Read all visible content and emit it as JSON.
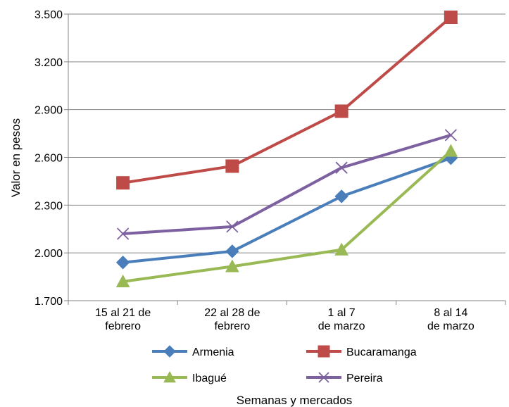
{
  "chart_data": {
    "type": "line",
    "categories": [
      [
        "15 al 21 de",
        "febrero"
      ],
      [
        "22 al 28 de",
        "febrero"
      ],
      [
        "1 al 7",
        "de marzo"
      ],
      [
        "8 al 14",
        "de marzo"
      ]
    ],
    "series": [
      {
        "name": "Armenia",
        "values": [
          1940,
          2010,
          2355,
          2595
        ],
        "color": "#4a7ebb",
        "marker": "diamond"
      },
      {
        "name": "Bucaramanga",
        "values": [
          2440,
          2545,
          2890,
          3480
        ],
        "color": "#be4b48",
        "marker": "square"
      },
      {
        "name": "Ibagué",
        "values": [
          1820,
          1915,
          2020,
          2640
        ],
        "color": "#98b954",
        "marker": "triangle"
      },
      {
        "name": "Pereira",
        "values": [
          2120,
          2165,
          2535,
          2740
        ],
        "color": "#7d60a0",
        "marker": "x"
      }
    ],
    "yticks": [
      "1.700",
      "2.000",
      "2.300",
      "2.600",
      "2.900",
      "3.200",
      "3.500"
    ],
    "ylim": [
      1700,
      3500
    ],
    "ylabel": "Valor en pesos",
    "xlabel": "Semanas y mercados",
    "grid": true,
    "legend_position": "bottom"
  }
}
